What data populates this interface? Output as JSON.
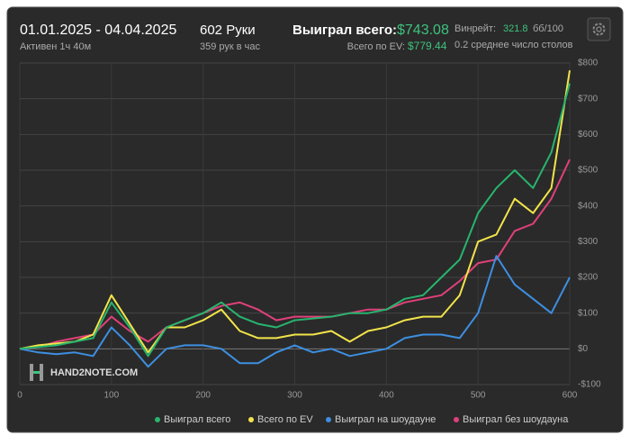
{
  "header": {
    "dates": "01.01.2025 - 04.04.2025",
    "active": "Активен 1ч 40м",
    "hands": "602 Руки",
    "rate": "359 рук в час",
    "won_label": "Выиграл всего:",
    "won_value": "$743.08",
    "ev_label": "Всего по EV:",
    "ev_value": "$779.44",
    "winrate_label": "Винрейт:",
    "winrate_value": "321.8",
    "winrate_unit": "бб/100",
    "tables": "0.2 среднее число столов",
    "watermark": "HAND2NOTE.COM"
  },
  "chart_data": {
    "type": "line",
    "x": [
      0,
      20,
      40,
      60,
      80,
      100,
      120,
      140,
      160,
      180,
      200,
      220,
      240,
      260,
      280,
      300,
      320,
      340,
      360,
      380,
      400,
      420,
      440,
      460,
      480,
      500,
      520,
      540,
      560,
      580,
      600
    ],
    "xlim": [
      0,
      600
    ],
    "xticks": [
      0,
      100,
      200,
      300,
      400,
      500,
      600
    ],
    "ylim": [
      -100,
      800
    ],
    "yticks": [
      {
        "value": -100,
        "label": "-$100"
      },
      {
        "value": 0,
        "label": "$0"
      },
      {
        "value": 100,
        "label": "$100"
      },
      {
        "value": 200,
        "label": "$200"
      },
      {
        "value": 300,
        "label": "$300"
      },
      {
        "value": 400,
        "label": "$400"
      },
      {
        "value": 500,
        "label": "$500"
      },
      {
        "value": 600,
        "label": "$600"
      },
      {
        "value": 700,
        "label": "$700"
      },
      {
        "value": 800,
        "label": "$800"
      }
    ],
    "grid": true,
    "series": [
      {
        "name": "Выиграл без шоудауна",
        "color": "#e0407a",
        "values": [
          0,
          5,
          20,
          30,
          40,
          90,
          50,
          20,
          60,
          80,
          100,
          120,
          130,
          110,
          80,
          90,
          90,
          90,
          100,
          110,
          110,
          130,
          140,
          150,
          190,
          240,
          250,
          330,
          350,
          420,
          530
        ]
      },
      {
        "name": "Выиграл на шоудауне",
        "color": "#3d8fe0",
        "values": [
          0,
          -10,
          -15,
          -10,
          -20,
          60,
          10,
          -50,
          0,
          10,
          10,
          0,
          -40,
          -40,
          -10,
          10,
          -10,
          0,
          -20,
          -10,
          0,
          30,
          40,
          40,
          30,
          100,
          260,
          180,
          140,
          100,
          200
        ]
      },
      {
        "name": "Всего по EV",
        "color": "#f2e44a",
        "values": [
          0,
          10,
          15,
          20,
          40,
          150,
          70,
          -10,
          60,
          60,
          80,
          110,
          50,
          30,
          30,
          40,
          40,
          50,
          20,
          50,
          60,
          80,
          90,
          90,
          150,
          300,
          320,
          420,
          380,
          450,
          779.44
        ]
      },
      {
        "name": "Выиграл всего",
        "color": "#27b56e",
        "values": [
          0,
          5,
          10,
          20,
          30,
          130,
          60,
          -20,
          60,
          80,
          100,
          130,
          90,
          70,
          60,
          80,
          85,
          90,
          100,
          100,
          110,
          140,
          150,
          200,
          250,
          380,
          450,
          500,
          450,
          550,
          743.08
        ]
      }
    ],
    "legend_order": [
      3,
      2,
      1,
      0
    ]
  }
}
